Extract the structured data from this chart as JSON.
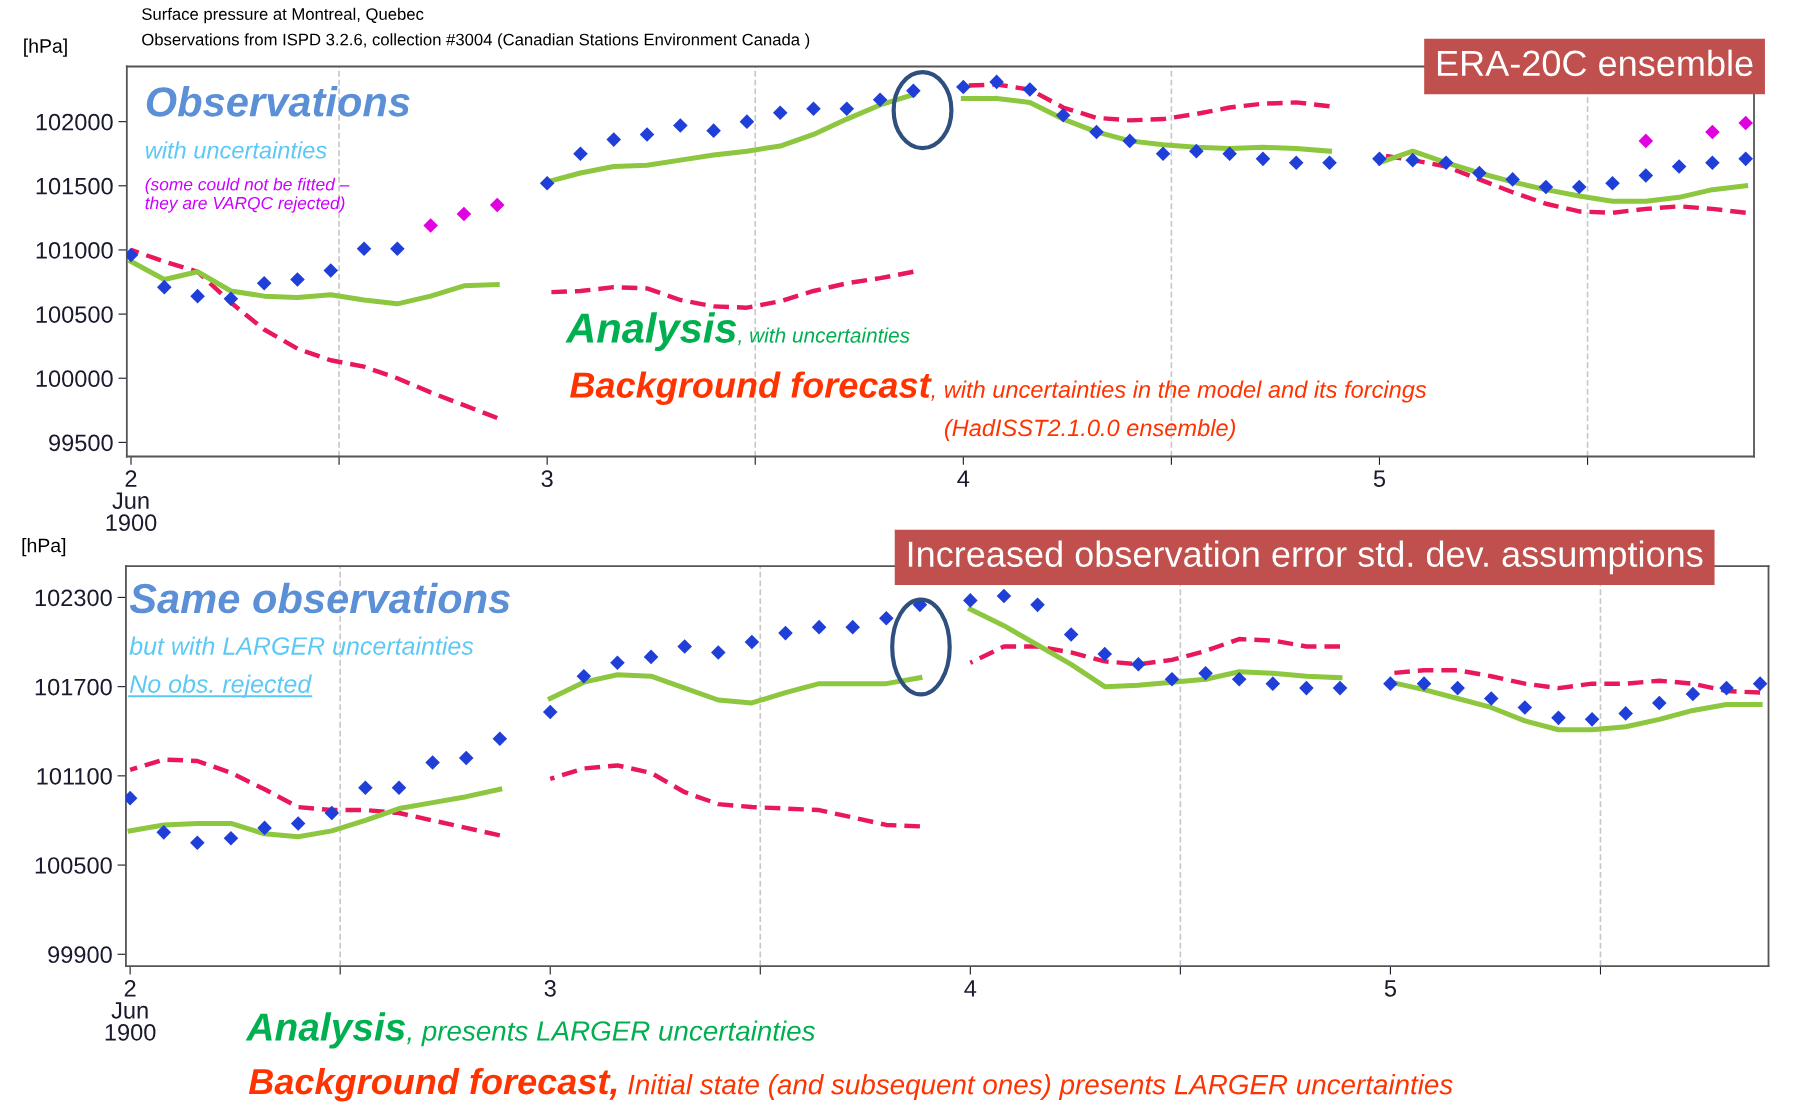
{
  "chart_data": [
    {
      "type": "line",
      "title": "Surface pressure at Montreal, Quebec",
      "subtitle": "Observations from ISPD 3.2.6, collection #3004 (Canadian Stations Environment Canada )",
      "ylabel": "[hPa]",
      "x": [
        2,
        2.08,
        2.16,
        2.24,
        2.32,
        2.4,
        2.48,
        2.56,
        2.64,
        2.72,
        2.8,
        2.88,
        2.94,
        3,
        3.08,
        3.16,
        3.24,
        3.32,
        3.4,
        3.48,
        3.56,
        3.64,
        3.72,
        3.8,
        3.88,
        3.94,
        4,
        4.08,
        4.16,
        4.24,
        4.32,
        4.4,
        4.48,
        4.56,
        4.64,
        4.72,
        4.8,
        4.88,
        4.94,
        5,
        5.08,
        5.16,
        5.24,
        5.32,
        5.4,
        5.48,
        5.56,
        5.64,
        5.72,
        5.8,
        5.88
      ],
      "xlim": [
        1.99,
        5.9
      ],
      "xticks": [
        {
          "value": 2,
          "label": "2\nJun\n1900"
        },
        {
          "value": 2.5,
          "label": null
        },
        3,
        {
          "value": 3.5,
          "label": null
        },
        4,
        {
          "value": 4.5,
          "label": null
        },
        5,
        {
          "value": 5.5,
          "label": null
        }
      ],
      "ylim": [
        99390,
        102430
      ],
      "yticks": [
        99500,
        100000,
        100500,
        101000,
        101500,
        102000
      ],
      "ref_lines": [
        {
          "axis": "x",
          "value": 2.5,
          "color": "#c8c8c8",
          "line_style": "dashed"
        },
        {
          "axis": "x",
          "value": 3.5,
          "color": "#c8c8c8",
          "line_style": "dashed"
        },
        {
          "axis": "x",
          "value": 4.5,
          "color": "#c8c8c8",
          "line_style": "dashed"
        },
        {
          "axis": "x",
          "value": 5.5,
          "color": "#c8c8c8",
          "line_style": "dashed"
        }
      ],
      "series": [
        {
          "line_style": "dashed",
          "marker": "none",
          "color": "#e8185a",
          "values": [
            101000,
            100910,
            100830,
            100590,
            100380,
            100230,
            100140,
            100090,
            100000,
            99890,
            99790,
            99690,
            null,
            100670,
            100680,
            100710,
            100700,
            100610,
            100560,
            100550,
            100600,
            100680,
            100740,
            100780,
            100830,
            null,
            102280,
            102290,
            102250,
            102110,
            102030,
            102010,
            102020,
            102060,
            102110,
            102140,
            102150,
            102120,
            null,
            101740,
            101700,
            101650,
            101550,
            101450,
            101360,
            101300,
            101290,
            101320,
            101340,
            101320,
            101290
          ]
        },
        {
          "line_style": "solid",
          "marker": "none",
          "color": "#8dc63f",
          "values": [
            100910,
            100770,
            100830,
            100680,
            100640,
            100630,
            100650,
            100610,
            100580,
            100640,
            100720,
            100730,
            null,
            101530,
            101600,
            101650,
            101660,
            101700,
            101740,
            101770,
            101810,
            101900,
            102020,
            102130,
            102210,
            null,
            102180,
            102180,
            102150,
            102020,
            101920,
            101850,
            101820,
            101800,
            101790,
            101800,
            101790,
            101770,
            null,
            101680,
            101770,
            101680,
            101600,
            101530,
            101470,
            101420,
            101380,
            101380,
            101410,
            101470,
            101500
          ]
        },
        {
          "type": "scatter",
          "marker": "diamond",
          "color": "#1f3fd8",
          "values": [
            100960,
            100710,
            100640,
            100620,
            100740,
            100770,
            100840,
            101010,
            101010,
            null,
            null,
            null,
            null,
            101520,
            101750,
            101860,
            101900,
            101970,
            101930,
            102000,
            102070,
            102100,
            102100,
            102170,
            102240,
            null,
            102270,
            102310,
            102250,
            102050,
            101920,
            101850,
            101750,
            101770,
            101750,
            101710,
            101680,
            101680,
            null,
            101710,
            101700,
            101680,
            101600,
            101550,
            101490,
            101490,
            101520,
            101580,
            101650,
            101680,
            101710
          ]
        },
        {
          "type": "scatter",
          "marker": "diamond",
          "color": "#e000e0",
          "values": [
            null,
            null,
            null,
            null,
            null,
            null,
            null,
            null,
            null,
            101190,
            101280,
            101350,
            null,
            null,
            null,
            null,
            null,
            null,
            null,
            null,
            null,
            null,
            null,
            null,
            null,
            null,
            null,
            null,
            null,
            null,
            null,
            null,
            null,
            null,
            null,
            null,
            null,
            null,
            null,
            null,
            null,
            null,
            null,
            null,
            null,
            null,
            null,
            101850,
            null,
            101920,
            101990
          ]
        }
      ],
      "annotations": [
        "ERA-20C ensemble",
        "Observations",
        "with uncertainties",
        "(some could not be fitted –\nthey are VARQC rejected)",
        "Analysis",
        ", with uncertainties",
        "Background forecast",
        ", with uncertainties in the model and its forcings",
        "(HadISST2.1.0.0 ensemble)"
      ]
    },
    {
      "type": "line",
      "ylabel": "[hPa]",
      "x": [
        2,
        2.08,
        2.16,
        2.24,
        2.32,
        2.4,
        2.48,
        2.56,
        2.64,
        2.72,
        2.8,
        2.88,
        2.94,
        3,
        3.08,
        3.16,
        3.24,
        3.32,
        3.4,
        3.48,
        3.56,
        3.64,
        3.72,
        3.8,
        3.88,
        3.94,
        4,
        4.08,
        4.16,
        4.24,
        4.32,
        4.4,
        4.48,
        4.56,
        4.64,
        4.72,
        4.8,
        4.88,
        4.94,
        5,
        5.08,
        5.16,
        5.24,
        5.32,
        5.4,
        5.48,
        5.56,
        5.64,
        5.72,
        5.8,
        5.88
      ],
      "xlim": [
        1.99,
        5.9
      ],
      "xticks": [
        {
          "value": 2,
          "label": "2\nJun\n1900"
        },
        {
          "value": 2.5,
          "label": null
        },
        3,
        {
          "value": 3.5,
          "label": null
        },
        4,
        {
          "value": 4.5,
          "label": null
        },
        5,
        {
          "value": 5.5,
          "label": null
        }
      ],
      "ylim": [
        99820,
        102510
      ],
      "yticks": [
        99900,
        100500,
        101100,
        101700,
        102300
      ],
      "ref_lines": [
        {
          "axis": "x",
          "value": 2.5,
          "color": "#c8c8c8",
          "line_style": "dashed"
        },
        {
          "axis": "x",
          "value": 3.5,
          "color": "#c8c8c8",
          "line_style": "dashed"
        },
        {
          "axis": "x",
          "value": 4.5,
          "color": "#c8c8c8",
          "line_style": "dashed"
        },
        {
          "axis": "x",
          "value": 5.5,
          "color": "#c8c8c8",
          "line_style": "dashed"
        }
      ],
      "series": [
        {
          "line_style": "dashed",
          "marker": "none",
          "color": "#e8185a",
          "values": [
            101140,
            101210,
            101200,
            101120,
            101010,
            100890,
            100870,
            100870,
            100850,
            100800,
            100750,
            100700,
            null,
            101080,
            101150,
            101170,
            101120,
            100990,
            100910,
            100890,
            100880,
            100870,
            100820,
            100770,
            100760,
            null,
            101860,
            101970,
            101970,
            101930,
            101870,
            101850,
            101880,
            101940,
            102020,
            102010,
            101970,
            101970,
            null,
            101790,
            101810,
            101810,
            101770,
            101720,
            101690,
            101720,
            101720,
            101740,
            101720,
            101670,
            101660
          ]
        },
        {
          "line_style": "solid",
          "marker": "none",
          "color": "#8dc63f",
          "values": [
            100730,
            100770,
            100780,
            100780,
            100710,
            100690,
            100730,
            100800,
            100880,
            100920,
            100960,
            101010,
            null,
            101620,
            101730,
            101780,
            101770,
            101690,
            101610,
            101590,
            101660,
            101720,
            101720,
            101720,
            101760,
            null,
            102220,
            102110,
            101980,
            101850,
            101700,
            101710,
            101730,
            101750,
            101800,
            101790,
            101770,
            101760,
            null,
            101730,
            101680,
            101620,
            101560,
            101470,
            101410,
            101410,
            101430,
            101480,
            101540,
            101580,
            101580
          ]
        },
        {
          "type": "scatter",
          "marker": "diamond",
          "color": "#1f3fd8",
          "values": [
            100950,
            100720,
            100650,
            100680,
            100750,
            100780,
            100850,
            101020,
            101020,
            101190,
            101220,
            101350,
            null,
            101530,
            101770,
            101860,
            101900,
            101970,
            101930,
            102000,
            102060,
            102100,
            102100,
            102160,
            102250,
            null,
            102280,
            102310,
            102250,
            102050,
            101920,
            101850,
            101750,
            101790,
            101750,
            101720,
            101690,
            101690,
            null,
            101720,
            101720,
            101690,
            101620,
            101560,
            101490,
            101480,
            101520,
            101590,
            101650,
            101690,
            101720
          ]
        }
      ],
      "annotations": [
        "Increased observation error std. dev. assumptions",
        "Same observations",
        "but with LARGER uncertainties",
        "No obs. rejected",
        "Analysis",
        ", presents LARGER uncertainties",
        "Background forecast,",
        " Initial state (and subsequent ones) presents LARGER uncertainties"
      ]
    }
  ]
}
